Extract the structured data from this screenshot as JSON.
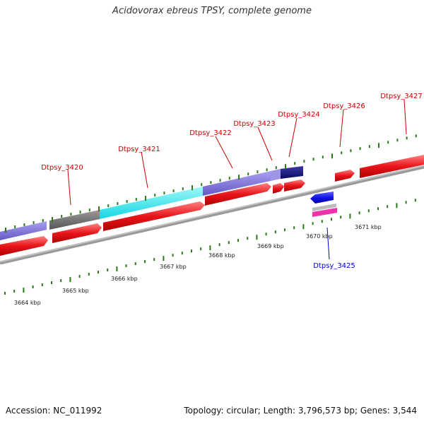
{
  "title": "Acidovorax ebreus TPSY, complete genome",
  "footer": {
    "accession": "Accession: NC_011992",
    "summary": "Topology: circular; Length: 3,796,573 bp; Genes: 3,544"
  },
  "colors": {
    "forward_gene": "#e8151b",
    "reverse_gene": "#1414e6",
    "label_forward": "#cc0000",
    "label_reverse": "#0000cc",
    "tick": "#2a7a1a",
    "backbone": "#7a7a7a",
    "cog_purple": "#7b6fd6",
    "cog_gray": "#6e6e6e",
    "cog_cyan": "#22e8ee",
    "cog_navy": "#141478",
    "cog_pink": "#ee33aa",
    "cog_silver": "#bbbbbb"
  },
  "kbp_ticks": [
    {
      "label": "3664 kbp",
      "kbp": 3664
    },
    {
      "label": "3665 kbp",
      "kbp": 3665
    },
    {
      "label": "3666 kbp",
      "kbp": 3666
    },
    {
      "label": "3667 kbp",
      "kbp": 3667
    },
    {
      "label": "3668 kbp",
      "kbp": 3668
    },
    {
      "label": "3669 kbp",
      "kbp": 3669
    },
    {
      "label": "3670 kbp",
      "kbp": 3670
    },
    {
      "label": "3671 kbp",
      "kbp": 3671
    }
  ],
  "gene_labels": [
    {
      "name": "Dtpsy_3420",
      "strand": "forward"
    },
    {
      "name": "Dtpsy_3421",
      "strand": "forward"
    },
    {
      "name": "Dtpsy_3422",
      "strand": "forward"
    },
    {
      "name": "Dtpsy_3423",
      "strand": "forward"
    },
    {
      "name": "Dtpsy_3424",
      "strand": "forward"
    },
    {
      "name": "Dtpsy_3425",
      "strand": "reverse"
    },
    {
      "name": "Dtpsy_3426",
      "strand": "forward"
    },
    {
      "name": "Dtpsy_3427",
      "strand": "forward"
    }
  ]
}
